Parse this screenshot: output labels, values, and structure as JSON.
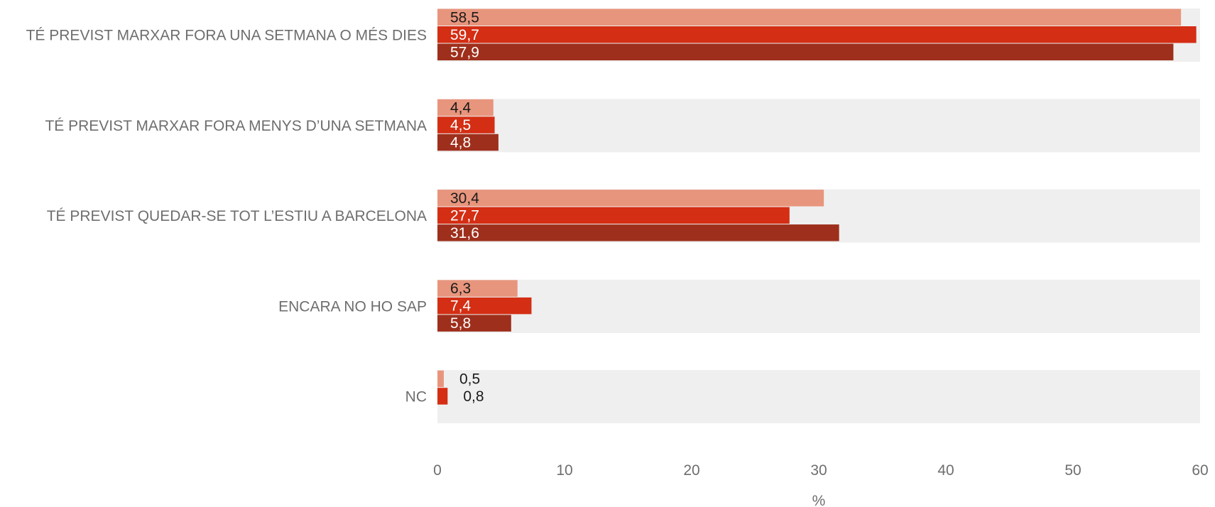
{
  "chart_data": {
    "type": "bar",
    "orientation": "horizontal",
    "categories": [
      "TÉ PREVIST MARXAR FORA UNA SETMANA O MÉS DIES",
      "TÉ PREVIST MARXAR FORA MENYS D’UNA SETMANA",
      "TÉ PREVIST QUEDAR-SE TOT L’ESTIU A BARCELONA",
      "ENCARA NO HO SAP",
      "NC"
    ],
    "series": [
      {
        "color": "#E8957D",
        "label_color": "#1a1a1a",
        "values": [
          58.5,
          4.4,
          30.4,
          6.3,
          0.5
        ],
        "labels": [
          "58,5",
          "4,4",
          "30,4",
          "6,3",
          "0,5"
        ]
      },
      {
        "color": "#D42E14",
        "label_color": "#ffffff",
        "values": [
          59.7,
          4.5,
          27.7,
          7.4,
          0.8
        ],
        "labels": [
          "59,7",
          "4,5",
          "27,7",
          "7,4",
          "0,8"
        ]
      },
      {
        "color": "#9E2F1C",
        "label_color": "#ffffff",
        "values": [
          57.9,
          4.8,
          31.6,
          5.8,
          null
        ],
        "labels": [
          "57,9",
          "4,8",
          "31,6",
          "5,8",
          ""
        ]
      }
    ],
    "xlim": [
      0,
      60
    ],
    "xticks": [
      0,
      10,
      20,
      30,
      40,
      50,
      60
    ],
    "xlabel": "%",
    "ylabel": "",
    "title": "",
    "background_band_color": "#EFEFEF",
    "grid": false,
    "legend": "none"
  }
}
